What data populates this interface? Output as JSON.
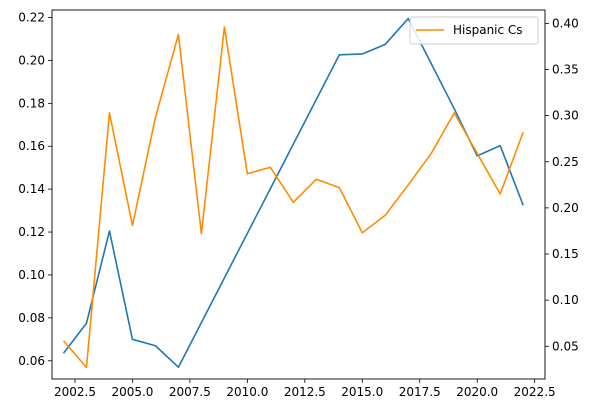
{
  "chart_data": {
    "type": "line",
    "x": [
      2002,
      2003,
      2004,
      2005,
      2006,
      2007,
      2008,
      2009,
      2010,
      2011,
      2012,
      2013,
      2014,
      2015,
      2016,
      2017,
      2018,
      2019,
      2020,
      2021,
      2022
    ],
    "series": [
      {
        "name": "",
        "axis": "left",
        "color": "#1f77b4",
        "values": [
          0.0635,
          0.0775,
          0.1205,
          0.07,
          0.067,
          0.057,
          0.0778,
          0.0986,
          0.1194,
          0.1402,
          0.161,
          0.1818,
          0.2026,
          0.203,
          0.2075,
          0.2195,
          0.1985,
          0.1775,
          0.1555,
          0.1603,
          0.1325
        ]
      },
      {
        "name": "Hispanic Cs",
        "axis": "right",
        "color": "#ff8c00",
        "values": [
          0.056,
          0.027,
          0.303,
          0.181,
          0.298,
          0.388,
          0.172,
          0.396,
          0.237,
          0.244,
          0.206,
          0.231,
          0.222,
          0.173,
          0.192,
          0.225,
          0.259,
          0.303,
          0.259,
          0.215,
          0.282
        ]
      }
    ],
    "xlim": [
      2001.5,
      2022.95
    ],
    "ylim": [
      0.0515,
      0.2235
    ],
    "y2lim": [
      0.0145,
      0.4145
    ],
    "x_ticks": [
      "2002.5",
      "2005.0",
      "2007.5",
      "2010.0",
      "2012.5",
      "2015.0",
      "2017.5",
      "2020.0",
      "2022.5"
    ],
    "x_tick_values": [
      2002.5,
      2005.0,
      2007.5,
      2010.0,
      2012.5,
      2015.0,
      2017.5,
      2020.0,
      2022.5
    ],
    "y_ticks": [
      "0.06",
      "0.08",
      "0.10",
      "0.12",
      "0.14",
      "0.16",
      "0.18",
      "0.20",
      "0.22"
    ],
    "y_tick_values": [
      0.06,
      0.08,
      0.1,
      0.12,
      0.14,
      0.16,
      0.18,
      0.2,
      0.22
    ],
    "y2_ticks": [
      "0.05",
      "0.10",
      "0.15",
      "0.20",
      "0.25",
      "0.30",
      "0.35",
      "0.40"
    ],
    "y2_tick_values": [
      0.05,
      0.1,
      0.15,
      0.2,
      0.25,
      0.3,
      0.35,
      0.4
    ],
    "title": "",
    "xlabel": "",
    "ylabel": "",
    "y2label": "",
    "grid": false,
    "legend": {
      "position": "top-right",
      "entries": [
        "Hispanic Cs"
      ]
    }
  }
}
